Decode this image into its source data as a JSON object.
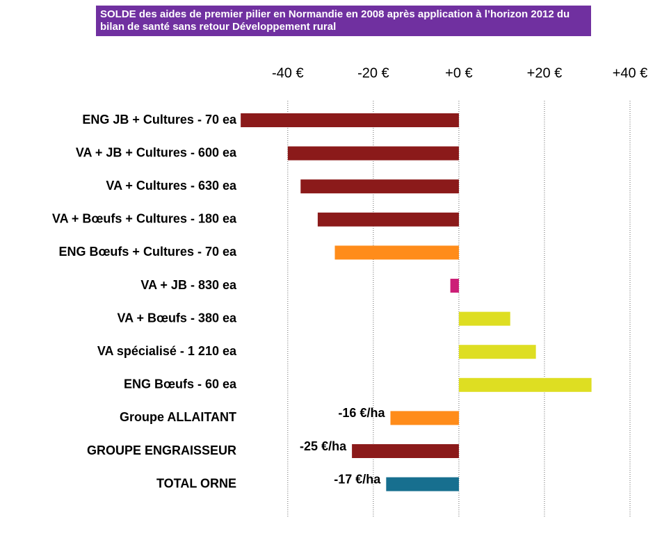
{
  "chart_data": {
    "type": "bar",
    "orientation": "horizontal",
    "title": "SOLDE des aides de premier pilier en Normandie en 2008 après application à l’horizon 2012 du bilan de santé sans retour Développement rural",
    "categories": [
      "ENG JB + Cultures - 70 ea",
      "VA + JB + Cultures - 600 ea",
      "VA + Cultures - 630 ea",
      "VA + Bœufs + Cultures - 180 ea",
      "ENG Bœufs + Cultures - 70 ea",
      "VA + JB - 830 ea",
      "VA + Bœufs - 380 ea",
      "VA spécialisé - 1 210 ea",
      "ENG Bœufs - 60 ea",
      "Groupe ALLAITANT",
      "GROUPE ENGRAISSEUR",
      "TOTAL ORNE"
    ],
    "values": [
      -51,
      -40,
      -37,
      -33,
      -29,
      -2,
      12,
      18,
      31,
      -16,
      -25,
      -17
    ],
    "value_labels": [
      null,
      null,
      null,
      null,
      null,
      null,
      null,
      null,
      null,
      "-16 €/ha",
      "-25 €/ha",
      "-17 €/ha"
    ],
    "colors": [
      "#8b1a1a",
      "#8b1a1a",
      "#8b1a1a",
      "#8b1a1a",
      "#ff8c1a",
      "#cc1f77",
      "#dede22",
      "#dede22",
      "#dede22",
      "#ff8c1a",
      "#8b1a1a",
      "#176f8f"
    ],
    "xlim": [
      -52,
      40
    ],
    "xticks": [
      {
        "value": -40,
        "label": "-40 €"
      },
      {
        "value": -20,
        "label": "-20 €"
      },
      {
        "value": 0,
        "label": "+0 €"
      },
      {
        "value": 20,
        "label": "+20 €"
      },
      {
        "value": 40,
        "label": "+40 €"
      }
    ],
    "grid": true
  }
}
